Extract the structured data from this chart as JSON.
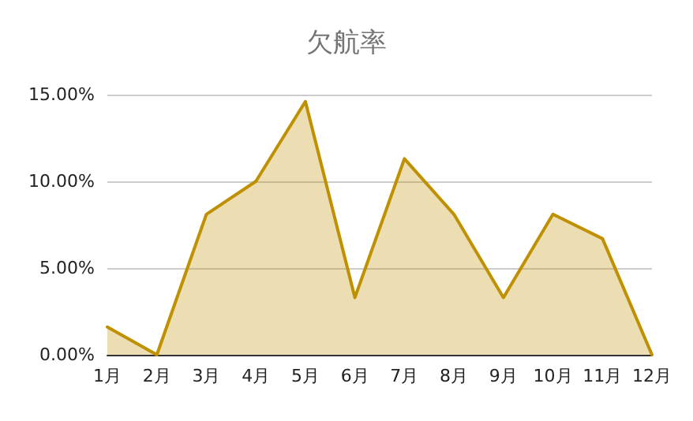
{
  "chart_data": {
    "type": "area",
    "title": "欠航率",
    "categories": [
      "1月",
      "2月",
      "3月",
      "4月",
      "5月",
      "6月",
      "7月",
      "8月",
      "9月",
      "10月",
      "11月",
      "12月"
    ],
    "series": [
      {
        "color": "#bf9000",
        "values": [
          1.6,
          0,
          8.1,
          10,
          14.6,
          3.3,
          11.3,
          8.1,
          3.3,
          8.1,
          6.7,
          0
        ]
      }
    ],
    "ylim": [
      0,
      15
    ],
    "yticks": [
      {
        "value": 0,
        "label": "0.00%"
      },
      {
        "value": 5,
        "label": "5.00%"
      },
      {
        "value": 10,
        "label": "10.00%"
      },
      {
        "value": 15,
        "label": "15.00%"
      }
    ],
    "grid": "y",
    "marker": "none",
    "line_style": "solid"
  }
}
